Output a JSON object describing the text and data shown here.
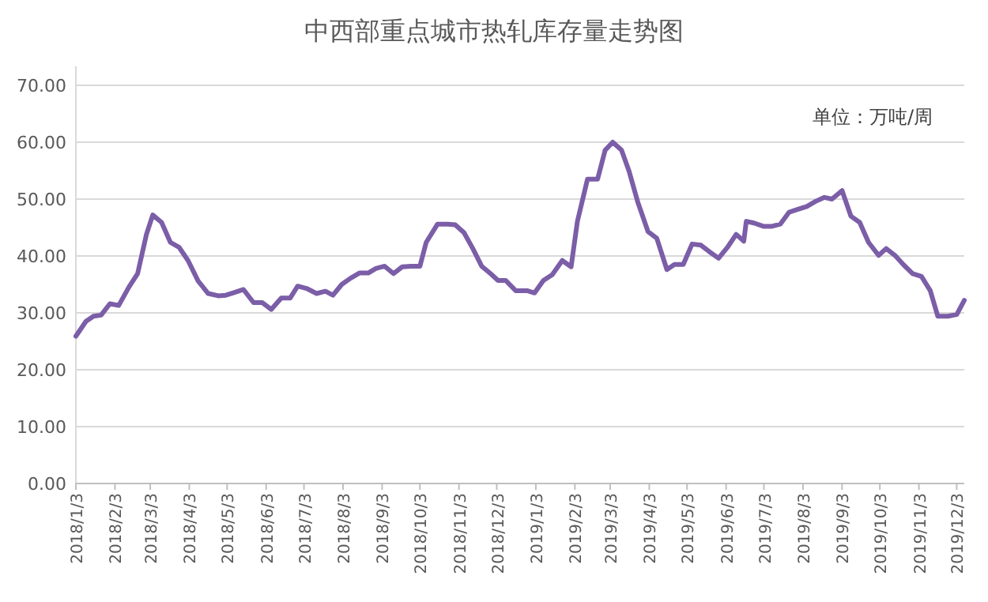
{
  "chart_data": {
    "type": "line",
    "title": "中西部重点城市热轧库存量走势图",
    "annotations": [
      "单位：万吨/周"
    ],
    "x": [
      "2018-01-03",
      "2018-01-11",
      "2018-01-17",
      "2018-01-23",
      "2018-01-30",
      "2018-02-06",
      "2018-02-14",
      "2018-02-21",
      "2018-02-28",
      "2018-03-05",
      "2018-03-12",
      "2018-03-19",
      "2018-03-26",
      "2018-04-02",
      "2018-04-10",
      "2018-04-18",
      "2018-04-26",
      "2018-05-02",
      "2018-05-09",
      "2018-05-16",
      "2018-05-24",
      "2018-05-31",
      "2018-06-07",
      "2018-06-15",
      "2018-06-22",
      "2018-06-28",
      "2018-07-05",
      "2018-07-13",
      "2018-07-20",
      "2018-07-26",
      "2018-08-02",
      "2018-08-09",
      "2018-08-16",
      "2018-08-23",
      "2018-08-29",
      "2018-09-05",
      "2018-09-12",
      "2018-09-19",
      "2018-09-26",
      "2018-10-03",
      "2018-10-08",
      "2018-10-17",
      "2018-10-25",
      "2018-10-31",
      "2018-11-07",
      "2018-11-14",
      "2018-11-21",
      "2018-11-28",
      "2018-12-04",
      "2018-12-10",
      "2018-12-18",
      "2018-12-27",
      "2019-01-02",
      "2019-01-09",
      "2019-01-16",
      "2019-01-24",
      "2019-01-31",
      "2019-02-05",
      "2019-02-13",
      "2019-02-21",
      "2019-02-27",
      "2019-03-05",
      "2019-03-12",
      "2019-03-18",
      "2019-03-25",
      "2019-04-02",
      "2019-04-09",
      "2019-04-17",
      "2019-04-23",
      "2019-04-30",
      "2019-05-07",
      "2019-05-14",
      "2019-05-21",
      "2019-05-28",
      "2019-06-04",
      "2019-06-11",
      "2019-06-17",
      "2019-06-19",
      "2019-06-25",
      "2019-07-03",
      "2019-07-09",
      "2019-07-16",
      "2019-07-23",
      "2019-07-30",
      "2019-08-06",
      "2019-08-13",
      "2019-08-20",
      "2019-08-26",
      "2019-09-03",
      "2019-09-10",
      "2019-09-17",
      "2019-09-24",
      "2019-10-02",
      "2019-10-08",
      "2019-10-15",
      "2019-10-22",
      "2019-10-29",
      "2019-11-05",
      "2019-11-12",
      "2019-11-18",
      "2019-11-26",
      "2019-12-03",
      "2019-12-09"
    ],
    "series": [
      {
        "color": "#7b5ea7",
        "values": [
          25.9,
          28.5,
          29.4,
          29.6,
          31.6,
          31.3,
          34.5,
          36.9,
          43.8,
          47.2,
          45.9,
          42.4,
          41.5,
          39.2,
          35.6,
          33.4,
          33.0,
          33.1,
          33.6,
          34.1,
          31.8,
          31.8,
          30.6,
          32.6,
          32.6,
          34.7,
          34.3,
          33.4,
          33.8,
          33.1,
          35.0,
          36.1,
          37.0,
          37.0,
          37.8,
          38.2,
          36.9,
          38.1,
          38.2,
          38.2,
          42.4,
          45.6,
          45.6,
          45.5,
          44.1,
          41.3,
          38.2,
          36.9,
          35.7,
          35.7,
          33.9,
          33.9,
          33.5,
          35.7,
          36.7,
          39.2,
          38.1,
          46.1,
          53.5,
          53.5,
          58.6,
          60.0,
          58.6,
          54.9,
          49.4,
          44.3,
          43.1,
          37.6,
          38.5,
          38.5,
          42.1,
          41.9,
          40.7,
          39.6,
          41.5,
          43.8,
          42.6,
          46.1,
          45.8,
          45.2,
          45.2,
          45.6,
          47.7,
          48.2,
          48.7,
          49.6,
          50.3,
          50.0,
          51.5,
          47.0,
          45.9,
          42.4,
          40.1,
          41.3,
          40.1,
          38.4,
          36.9,
          36.4,
          33.9,
          29.4,
          29.4,
          29.7,
          32.2
        ]
      }
    ],
    "xlim": [
      "2018-01-03",
      "2019-12-09"
    ],
    "xticks": [
      {
        "value": "2018-01-03",
        "label": "2018/1/3"
      },
      {
        "value": "2018-02-03",
        "label": "2018/2/3"
      },
      {
        "value": "2018-03-03",
        "label": "2018/3/3"
      },
      {
        "value": "2018-04-03",
        "label": "2018/4/3"
      },
      {
        "value": "2018-05-03",
        "label": "2018/5/3"
      },
      {
        "value": "2018-06-03",
        "label": "2018/6/3"
      },
      {
        "value": "2018-07-03",
        "label": "2018/7/3"
      },
      {
        "value": "2018-08-03",
        "label": "2018/8/3"
      },
      {
        "value": "2018-09-03",
        "label": "2018/9/3"
      },
      {
        "value": "2018-10-03",
        "label": "2018/10/3"
      },
      {
        "value": "2018-11-03",
        "label": "2018/11/3"
      },
      {
        "value": "2018-12-03",
        "label": "2018/12/3"
      },
      {
        "value": "2019-01-03",
        "label": "2019/1/3"
      },
      {
        "value": "2019-02-03",
        "label": "2019/2/3"
      },
      {
        "value": "2019-03-03",
        "label": "2019/3/3"
      },
      {
        "value": "2019-04-03",
        "label": "2019/4/3"
      },
      {
        "value": "2019-05-03",
        "label": "2019/5/3"
      },
      {
        "value": "2019-06-03",
        "label": "2019/6/3"
      },
      {
        "value": "2019-07-03",
        "label": "2019/7/3"
      },
      {
        "value": "2019-08-03",
        "label": "2019/8/3"
      },
      {
        "value": "2019-09-03",
        "label": "2019/9/3"
      },
      {
        "value": "2019-10-03",
        "label": "2019/10/3"
      },
      {
        "value": "2019-11-03",
        "label": "2019/11/3"
      },
      {
        "value": "2019-12-03",
        "label": "2019/12/3"
      }
    ],
    "ylim": [
      0,
      70
    ],
    "yticks": [
      {
        "value": 0,
        "label": "0.00"
      },
      {
        "value": 10,
        "label": "10.00"
      },
      {
        "value": 20,
        "label": "20.00"
      },
      {
        "value": 30,
        "label": "30.00"
      },
      {
        "value": 40,
        "label": "40.00"
      },
      {
        "value": 50,
        "label": "50.00"
      },
      {
        "value": 60,
        "label": "60.00"
      },
      {
        "value": 70,
        "label": "70.00"
      }
    ],
    "grid": "y"
  }
}
